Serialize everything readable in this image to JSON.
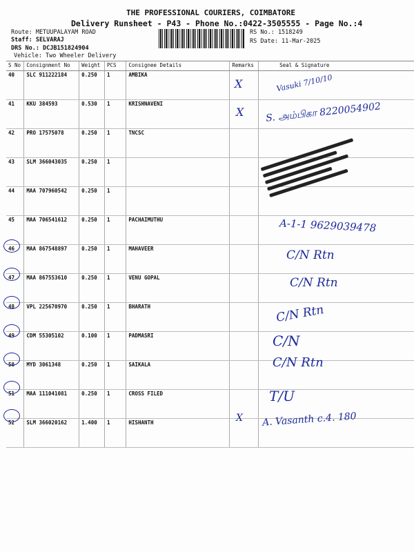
{
  "header": {
    "company": "THE PROFESSIONAL COURIERS, COIMBATORE",
    "subtitle": "Delivery Runsheet - P43 - Phone No.:0422-3505555 - Page No.:4",
    "route": "Route: METUUPALAYAM ROAD",
    "staff": "Staff: SELVARAJ",
    "drs": "DRS No.: DCJB151824904",
    "vehicle": "Vehicle: Two Wheeler Delivery",
    "rs_no": "RS No.: 1518249",
    "rs_date": "RS Date: 11-Mar-2025"
  },
  "columns": [
    "S No",
    "Consignment No",
    "Weight",
    "PCS",
    "Consignee Details",
    "Remarks",
    "Seal & Signature"
  ],
  "rows": [
    {
      "sno": "40",
      "cons": "SLC 911222184",
      "weight": "0.250",
      "pcs": "1",
      "consignee": "AMBIKA"
    },
    {
      "sno": "41",
      "cons": "KKU 384593",
      "weight": "0.530",
      "pcs": "1",
      "consignee": "KRISHNAVENI"
    },
    {
      "sno": "42",
      "cons": "PRO 17575078",
      "weight": "0.250",
      "pcs": "1",
      "consignee": "TNCSC"
    },
    {
      "sno": "43",
      "cons": "SLM 366043035",
      "weight": "0.250",
      "pcs": "1",
      "consignee": ""
    },
    {
      "sno": "44",
      "cons": "MAA 707960542",
      "weight": "0.250",
      "pcs": "1",
      "consignee": ""
    },
    {
      "sno": "45",
      "cons": "MAA 706541612",
      "weight": "0.250",
      "pcs": "1",
      "consignee": "PACHAIMUTHU"
    },
    {
      "sno": "46",
      "cons": "MAA 867548897",
      "weight": "0.250",
      "pcs": "1",
      "consignee": "MAHAVEER"
    },
    {
      "sno": "47",
      "cons": "MAA 867553610",
      "weight": "0.250",
      "pcs": "1",
      "consignee": "VENU GOPAL"
    },
    {
      "sno": "48",
      "cons": "VPL 225670970",
      "weight": "0.250",
      "pcs": "1",
      "consignee": "BHARATH"
    },
    {
      "sno": "49",
      "cons": "CDM 55305102",
      "weight": "0.100",
      "pcs": "1",
      "consignee": "PADMASRI"
    },
    {
      "sno": "50",
      "cons": "MYD 3061348",
      "weight": "0.250",
      "pcs": "1",
      "consignee": "SAIKALA"
    },
    {
      "sno": "51",
      "cons": "MAA 111041081",
      "weight": "0.250",
      "pcs": "1",
      "consignee": "CROSS FILED"
    },
    {
      "sno": "52",
      "cons": "SLM 366020162",
      "weight": "1.400",
      "pcs": "1",
      "consignee": "HISHANTH"
    }
  ],
  "handwriting": {
    "r40": "Vasuki 7/10/10",
    "r41": "S. அம்பிகா 8220054902",
    "r45": "A-1-1 9629039478",
    "r46": "C/N Rtn",
    "r47": "C/N Rtn",
    "r48": "C/N Rtn",
    "r49": "C/N",
    "r50": "C/N Rtn",
    "r51": "T/U",
    "r52": "A. Vasanth c.4. 180",
    "remark_mark": "X"
  },
  "colors": {
    "ink": "#1b2a9a"
  }
}
